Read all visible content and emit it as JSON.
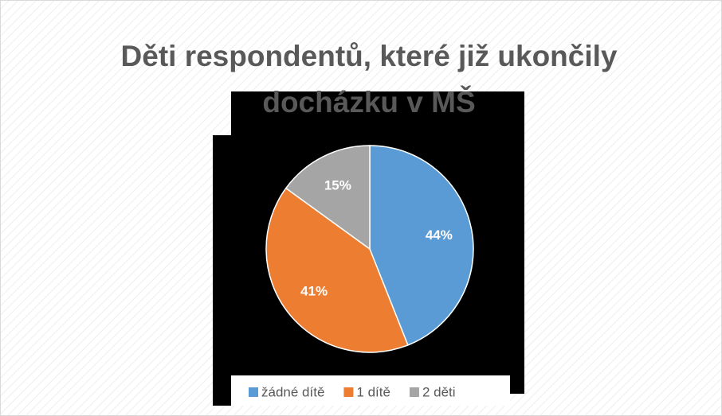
{
  "chart_data": {
    "type": "pie",
    "title": "Děti respondentů, které již ukončily docházku v MŠ",
    "categories": [
      "žádné dítě",
      "1 dítě",
      "2 děti"
    ],
    "values": [
      44,
      41,
      15
    ],
    "value_labels": [
      "44%",
      "41%",
      "15%"
    ],
    "colors": [
      "#5b9bd5",
      "#ed7d31",
      "#a5a5a5"
    ],
    "legend": "bottom"
  }
}
